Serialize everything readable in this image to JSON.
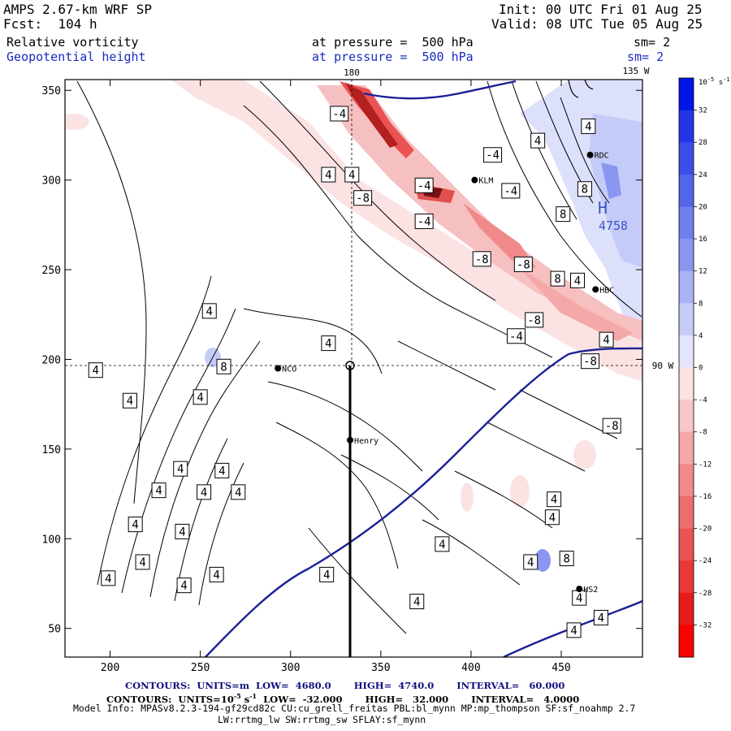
{
  "header": {
    "model_title": "AMPS 2.67-km WRF SP",
    "forecast": "Fcst:  104 h",
    "init": "Init: 00 UTC Fri 01 Aug 25",
    "valid": "Valid: 08 UTC Tue 05 Aug 25",
    "field1_name": "Relative vorticity",
    "field1_level": "at pressure =  500 hPa",
    "field1_sm": "sm= 2",
    "field2_name": "Geopotential height",
    "field2_level": "at pressure =  500 hPa",
    "field2_sm": "sm= 2"
  },
  "map_labels": {
    "lon_top_180": "180",
    "lon_top_135": "135 W",
    "lon_right_90": "90 W",
    "high_center": "H",
    "high_value": "4758"
  },
  "stations": [
    {
      "name": "NCO",
      "x": 293,
      "y": 195
    },
    {
      "name": "Henry",
      "x": 333,
      "y": 155
    },
    {
      "name": "KLM",
      "x": 402,
      "y": 300
    },
    {
      "name": "RDC",
      "x": 466,
      "y": 314
    },
    {
      "name": "HBC",
      "x": 469,
      "y": 239
    },
    {
      "name": "HS2",
      "x": 460,
      "y": 72
    }
  ],
  "chart_data": {
    "type": "contour",
    "xlim": [
      175,
      495
    ],
    "ylim": [
      34,
      356
    ],
    "x_ticks": [
      200,
      250,
      300,
      350,
      400,
      450
    ],
    "y_ticks": [
      50,
      100,
      150,
      200,
      250,
      300,
      350
    ],
    "crosshair": {
      "x": 334,
      "y": 195
    },
    "cross_section_line": {
      "x": 333,
      "y_from": 195,
      "y_to": 34
    },
    "contour_labels": [
      {
        "text": "4",
        "x": 199,
        "y": 78
      },
      {
        "text": "4",
        "x": 218,
        "y": 87
      },
      {
        "text": "4",
        "x": 241,
        "y": 74
      },
      {
        "text": "4",
        "x": 259,
        "y": 80
      },
      {
        "text": "4",
        "x": 214,
        "y": 108
      },
      {
        "text": "4",
        "x": 240,
        "y": 104
      },
      {
        "text": "4",
        "x": 227,
        "y": 127
      },
      {
        "text": "4",
        "x": 252,
        "y": 126
      },
      {
        "text": "4",
        "x": 239,
        "y": 139
      },
      {
        "text": "4",
        "x": 262,
        "y": 138
      },
      {
        "text": "4",
        "x": 271,
        "y": 126
      },
      {
        "text": "4",
        "x": 192,
        "y": 194
      },
      {
        "text": "4",
        "x": 211,
        "y": 177
      },
      {
        "text": "4",
        "x": 250,
        "y": 179
      },
      {
        "text": "8",
        "x": 263,
        "y": 196
      },
      {
        "text": "4",
        "x": 255,
        "y": 227
      },
      {
        "text": "4",
        "x": 321,
        "y": 209
      },
      {
        "text": "4",
        "x": 320,
        "y": 80
      },
      {
        "text": "4",
        "x": 370,
        "y": 65
      },
      {
        "text": "4",
        "x": 384,
        "y": 97
      },
      {
        "text": "4",
        "x": 433,
        "y": 87
      },
      {
        "text": "4",
        "x": 446,
        "y": 122
      },
      {
        "text": "4",
        "x": 445,
        "y": 112
      },
      {
        "text": "8",
        "x": 453,
        "y": 89
      },
      {
        "text": "4",
        "x": 460,
        "y": 67
      },
      {
        "text": "4",
        "x": 457,
        "y": 49
      },
      {
        "text": "4",
        "x": 472,
        "y": 56
      },
      {
        "text": "4",
        "x": 321,
        "y": 303
      },
      {
        "text": "4",
        "x": 334,
        "y": 303
      },
      {
        "text": "-4",
        "x": 327,
        "y": 337
      },
      {
        "text": "-8",
        "x": 340,
        "y": 290
      },
      {
        "text": "-4",
        "x": 374,
        "y": 297
      },
      {
        "text": "-4",
        "x": 374,
        "y": 277
      },
      {
        "text": "-4",
        "x": 412,
        "y": 314
      },
      {
        "text": "-4",
        "x": 422,
        "y": 294
      },
      {
        "text": "-8",
        "x": 406,
        "y": 256
      },
      {
        "text": "-8",
        "x": 429,
        "y": 253
      },
      {
        "text": "-8",
        "x": 435,
        "y": 222
      },
      {
        "text": "-4",
        "x": 425,
        "y": 213
      },
      {
        "text": "-8",
        "x": 466,
        "y": 199
      },
      {
        "text": "-8",
        "x": 478,
        "y": 163
      },
      {
        "text": "4",
        "x": 437,
        "y": 322
      },
      {
        "text": "4",
        "x": 465,
        "y": 330
      },
      {
        "text": "8",
        "x": 451,
        "y": 281
      },
      {
        "text": "8",
        "x": 463,
        "y": 295
      },
      {
        "text": "8",
        "x": 448,
        "y": 245
      },
      {
        "text": "4",
        "x": 459,
        "y": 244
      },
      {
        "text": "4",
        "x": 475,
        "y": 211
      }
    ],
    "colorbar": {
      "unit": "10^-5 s^-1",
      "unit_label": "10",
      "unit_exponent": "-5",
      "unit_suffix": " s",
      "unit_suffix_exponent": "-1",
      "tick_labels": [
        "32",
        "28",
        "24",
        "20",
        "16",
        "12",
        "8",
        "4",
        "0",
        "-4",
        "-8",
        "-12",
        "-16",
        "-20",
        "-24",
        "-28",
        "-32"
      ],
      "colors": [
        "#0015e6",
        "#2236e8",
        "#3b4ee9",
        "#5366ea",
        "#6e7fee",
        "#8a97f1",
        "#a8b2f5",
        "#c6ccf8",
        "#e3e6fb",
        "#fbe3e3",
        "#f8c6c6",
        "#f4a8a8",
        "#f08a8a",
        "#ed6e6e",
        "#ea5353",
        "#e83838",
        "#e61b1b",
        "#ff0000"
      ]
    }
  },
  "footer": {
    "line1": "CONTOURS:  UNITS=m  LOW=  4680.0       HIGH=  4740.0       INTERVAL=   60.000",
    "line2_a": "CONTOURS:  UNITS=10",
    "line2_exp1": "-5",
    "line2_b": " s",
    "line2_exp2": "-1",
    "line2_c": "  LOW=  -32.000       HIGH=   32.000       INTERVAL=   4.0000",
    "line3": "Model Info: MPASv8.2.3-194-gf29cd82c CU:cu_grell_freitas PBL:bl_mynn MP:mp_thompson SF:sf_noahmp 2.7",
    "line4": "LW:rrtmg_lw SW:rrtmg_sw SFLAY:sf_mynn"
  }
}
